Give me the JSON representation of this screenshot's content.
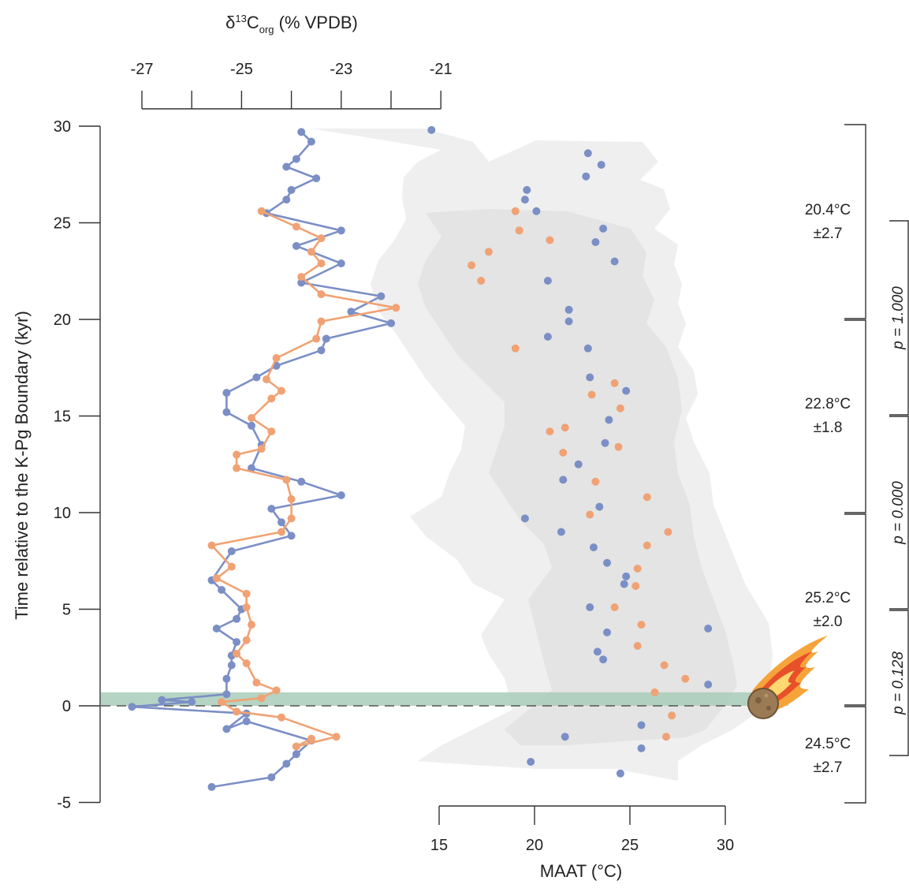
{
  "chart_data": {
    "type": "scatter",
    "y_axis": {
      "label": "Time relative to the K-Pg Boundary (kyr)",
      "range": [
        -5,
        30
      ],
      "ticks": [
        -5,
        0,
        5,
        10,
        15,
        20,
        25,
        30
      ],
      "tick_labels": [
        "-5",
        "0",
        "5",
        "10",
        "15",
        "20",
        "25",
        "30"
      ]
    },
    "top_axis": {
      "title_main": "δ",
      "title_sup": "13",
      "title_letter": "C",
      "title_sub": "org",
      "title_rest": " (% VPDB)",
      "range": [
        -27,
        -21
      ],
      "major_ticks": [
        -27,
        -25,
        -23,
        -21
      ],
      "tick_labels": [
        "-27",
        "-25",
        "-23",
        "-21"
      ],
      "minor_ticks": [
        -26,
        -24,
        -22
      ]
    },
    "bottom_axis": {
      "label": "MAAT (°C)",
      "range": [
        15,
        30
      ],
      "ticks": [
        15,
        20,
        25,
        30
      ],
      "tick_labels": [
        "15",
        "20",
        "25",
        "30"
      ]
    },
    "boundary": {
      "y": 0,
      "band": [
        0,
        0.7
      ]
    },
    "colors": {
      "blue": "#7b8fc6",
      "orange": "#f0a274",
      "band": "#a9cdb8",
      "shade_outer": "#efefef",
      "shade_inner": "#e4e4e4"
    },
    "series": [
      {
        "color": "blue",
        "axis": "top",
        "connected": true,
        "points": [
          [
            -23.8,
            29.7
          ],
          [
            -23.6,
            29.2
          ],
          [
            -23.9,
            28.3
          ],
          [
            -24.1,
            27.9
          ],
          [
            -23.5,
            27.3
          ],
          [
            -24.0,
            26.7
          ],
          [
            -24.1,
            26.2
          ],
          [
            -24.5,
            25.5
          ],
          [
            -23.0,
            24.6
          ],
          [
            -23.9,
            23.8
          ],
          [
            -23.0,
            22.9
          ],
          [
            -23.8,
            21.9
          ],
          [
            -22.2,
            21.2
          ],
          [
            -22.8,
            20.4
          ],
          [
            -22.0,
            19.8
          ],
          [
            -23.3,
            19.0
          ],
          [
            -23.4,
            18.4
          ],
          [
            -24.3,
            17.6
          ],
          [
            -24.7,
            17.0
          ],
          [
            -25.3,
            16.2
          ],
          [
            -25.3,
            15.2
          ],
          [
            -24.8,
            14.5
          ],
          [
            -24.6,
            13.5
          ],
          [
            -24.8,
            12.3
          ],
          [
            -23.8,
            11.6
          ],
          [
            -23.0,
            10.9
          ],
          [
            -24.4,
            10.2
          ],
          [
            -24.2,
            9.5
          ],
          [
            -24.0,
            8.8
          ],
          [
            -25.2,
            8.0
          ],
          [
            -25.6,
            6.5
          ],
          [
            -25.4,
            6.0
          ],
          [
            -25.0,
            5.0
          ],
          [
            -25.1,
            4.5
          ],
          [
            -25.5,
            4.0
          ],
          [
            -25.1,
            3.3
          ],
          [
            -25.2,
            2.6
          ],
          [
            -25.2,
            2.1
          ],
          [
            -25.3,
            1.4
          ],
          [
            -25.3,
            0.6
          ],
          [
            -26.6,
            0.3
          ],
          [
            -26.0,
            0.2
          ],
          [
            -27.2,
            -0.05
          ],
          [
            -24.9,
            -0.4
          ],
          [
            -25.3,
            -1.2
          ],
          [
            -24.9,
            -0.8
          ],
          [
            -23.6,
            -1.8
          ],
          [
            -23.9,
            -2.5
          ],
          [
            -24.1,
            -3.0
          ],
          [
            -24.4,
            -3.7
          ],
          [
            -25.6,
            -4.2
          ]
        ]
      },
      {
        "color": "orange",
        "axis": "top",
        "connected": true,
        "points": [
          [
            -24.6,
            25.6
          ],
          [
            -23.9,
            24.8
          ],
          [
            -23.4,
            24.2
          ],
          [
            -23.6,
            23.5
          ],
          [
            -23.4,
            22.9
          ],
          [
            -23.8,
            22.2
          ],
          [
            -23.4,
            21.3
          ],
          [
            -21.9,
            20.6
          ],
          [
            -23.4,
            19.9
          ],
          [
            -23.5,
            19.0
          ],
          [
            -24.3,
            18.0
          ],
          [
            -24.5,
            16.9
          ],
          [
            -24.2,
            16.3
          ],
          [
            -24.4,
            15.9
          ],
          [
            -24.8,
            14.9
          ],
          [
            -24.4,
            14.2
          ],
          [
            -24.6,
            13.3
          ],
          [
            -25.1,
            13.0
          ],
          [
            -25.1,
            12.3
          ],
          [
            -24.1,
            11.7
          ],
          [
            -24.0,
            10.7
          ],
          [
            -24.0,
            9.7
          ],
          [
            -24.2,
            9.0
          ],
          [
            -25.6,
            8.3
          ],
          [
            -25.2,
            7.2
          ],
          [
            -25.5,
            6.6
          ],
          [
            -24.9,
            5.8
          ],
          [
            -24.9,
            5.1
          ],
          [
            -24.8,
            4.2
          ],
          [
            -24.9,
            3.4
          ],
          [
            -25.1,
            2.7
          ],
          [
            -24.9,
            2.2
          ],
          [
            -24.7,
            1.2
          ],
          [
            -24.3,
            0.8
          ],
          [
            -24.6,
            0.4
          ],
          [
            -25.4,
            0.2
          ],
          [
            -25.1,
            -0.3
          ],
          [
            -24.2,
            -0.6
          ],
          [
            -23.1,
            -1.6
          ],
          [
            -23.9,
            -2.1
          ],
          [
            -23.6,
            -1.7
          ]
        ]
      },
      {
        "color": "blue",
        "axis": "bottom",
        "connected": false,
        "points": [
          [
            14.6,
            29.8
          ],
          [
            22.8,
            28.6
          ],
          [
            23.5,
            28.0
          ],
          [
            22.7,
            27.4
          ],
          [
            19.6,
            26.7
          ],
          [
            19.5,
            26.2
          ],
          [
            20.1,
            25.6
          ],
          [
            23.6,
            24.7
          ],
          [
            23.2,
            24.0
          ],
          [
            24.2,
            23.0
          ],
          [
            20.7,
            22.0
          ],
          [
            21.8,
            20.5
          ],
          [
            21.8,
            19.9
          ],
          [
            20.7,
            19.1
          ],
          [
            22.8,
            18.5
          ],
          [
            22.9,
            17.0
          ],
          [
            24.8,
            16.3
          ],
          [
            23.9,
            14.8
          ],
          [
            23.7,
            13.6
          ],
          [
            22.3,
            12.5
          ],
          [
            21.5,
            11.7
          ],
          [
            23.4,
            10.3
          ],
          [
            19.5,
            9.7
          ],
          [
            21.4,
            9.0
          ],
          [
            23.1,
            8.2
          ],
          [
            23.8,
            7.4
          ],
          [
            24.8,
            6.7
          ],
          [
            24.7,
            6.3
          ],
          [
            22.9,
            5.1
          ],
          [
            29.1,
            4.0
          ],
          [
            23.8,
            3.8
          ],
          [
            23.3,
            2.8
          ],
          [
            23.6,
            2.4
          ],
          [
            29.1,
            1.1
          ],
          [
            25.6,
            -1.0
          ],
          [
            21.6,
            -1.6
          ],
          [
            25.6,
            -2.2
          ],
          [
            19.8,
            -2.9
          ],
          [
            24.5,
            -3.5
          ]
        ]
      },
      {
        "color": "orange",
        "axis": "bottom",
        "connected": false,
        "points": [
          [
            19.0,
            25.6
          ],
          [
            19.2,
            24.6
          ],
          [
            20.8,
            24.1
          ],
          [
            17.6,
            23.5
          ],
          [
            16.7,
            22.8
          ],
          [
            17.2,
            22.0
          ],
          [
            19.0,
            18.5
          ],
          [
            24.2,
            16.7
          ],
          [
            23.0,
            16.1
          ],
          [
            24.5,
            15.4
          ],
          [
            21.6,
            14.4
          ],
          [
            20.8,
            14.2
          ],
          [
            24.4,
            13.4
          ],
          [
            21.5,
            13.1
          ],
          [
            23.2,
            11.6
          ],
          [
            25.9,
            10.8
          ],
          [
            22.9,
            9.9
          ],
          [
            27.0,
            9.0
          ],
          [
            25.9,
            8.3
          ],
          [
            25.4,
            7.1
          ],
          [
            25.3,
            6.2
          ],
          [
            24.2,
            5.1
          ],
          [
            25.6,
            4.2
          ],
          [
            25.4,
            3.1
          ],
          [
            26.8,
            2.1
          ],
          [
            27.9,
            1.4
          ],
          [
            26.3,
            0.7
          ],
          [
            27.2,
            -0.5
          ],
          [
            26.9,
            -1.6
          ]
        ]
      }
    ],
    "annotations": [
      {
        "temp": "20.4°C",
        "sd": "±2.7"
      },
      {
        "temp": "22.8°C",
        "sd": "±1.8"
      },
      {
        "temp": "25.2°C",
        "sd": "±2.0"
      },
      {
        "temp": "24.5°C",
        "sd": "±2.7"
      }
    ],
    "p_values": [
      "p = 1.000",
      "p = 0.000",
      "p = 0.128"
    ]
  }
}
